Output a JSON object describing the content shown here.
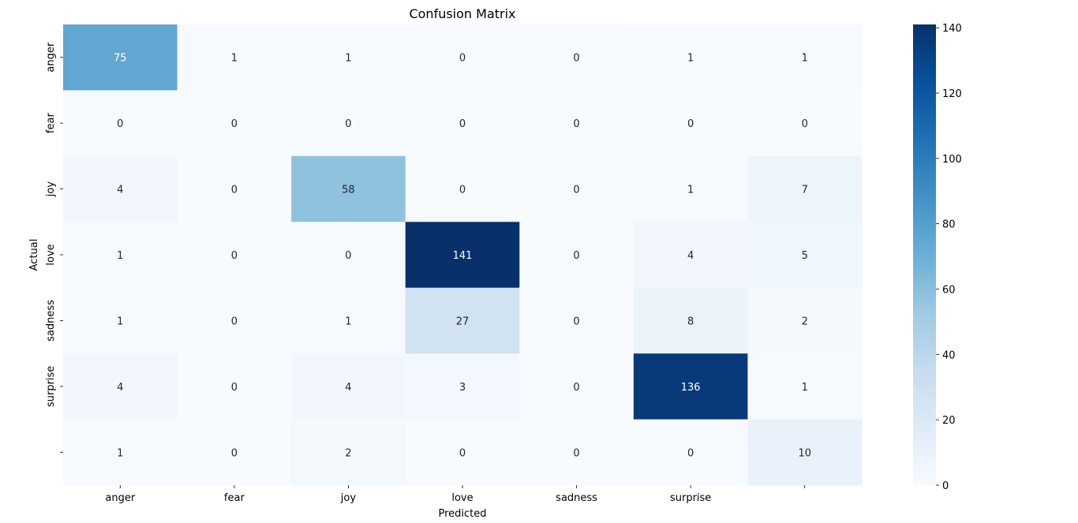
{
  "chart_data": {
    "type": "heatmap",
    "title": "Confusion Matrix",
    "xlabel": "Predicted",
    "ylabel": "Actual",
    "x_tick_labels": [
      "anger",
      "fear",
      "joy",
      "love",
      "sadness",
      "surprise",
      ""
    ],
    "y_tick_labels": [
      "anger",
      "fear",
      "joy",
      "love",
      "sadness",
      "surprise",
      ""
    ],
    "values": [
      [
        75,
        1,
        1,
        0,
        0,
        1,
        1
      ],
      [
        0,
        0,
        0,
        0,
        0,
        0,
        0
      ],
      [
        4,
        0,
        58,
        0,
        0,
        1,
        7
      ],
      [
        1,
        0,
        0,
        141,
        0,
        4,
        5
      ],
      [
        1,
        0,
        1,
        27,
        0,
        8,
        2
      ],
      [
        4,
        0,
        4,
        3,
        0,
        136,
        1
      ],
      [
        1,
        0,
        2,
        0,
        0,
        0,
        10
      ]
    ],
    "colormap": "Blues",
    "colorbar_range": [
      0,
      141
    ],
    "colorbar_ticks": [
      0,
      20,
      40,
      60,
      80,
      100,
      120,
      140
    ]
  }
}
